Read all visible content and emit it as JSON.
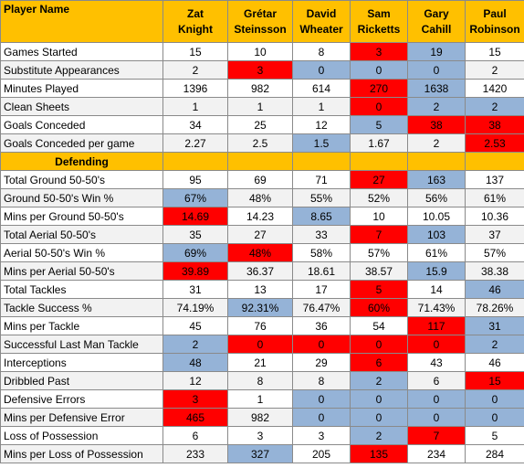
{
  "header": {
    "corner_label": "Player Name",
    "players": [
      {
        "line1": "Zat",
        "line2": "Knight"
      },
      {
        "line1": "Grétar",
        "line2": "Steinsson"
      },
      {
        "line1": "David",
        "line2": "Wheater"
      },
      {
        "line1": "Sam",
        "line2": "Ricketts"
      },
      {
        "line1": "Gary",
        "line2": "Cahill"
      },
      {
        "line1": "Paul",
        "line2": "Robinson"
      }
    ]
  },
  "colors": {
    "red": "#ff0000",
    "blue": "#95b3d7",
    "header": "#ffc000",
    "white": "#ffffff",
    "grey": "#f2f2f2"
  },
  "general_rows": [
    {
      "label": "Games Started",
      "values": [
        "15",
        "10",
        "8",
        "3",
        "19",
        "15"
      ],
      "colors": [
        "white",
        "white",
        "white",
        "red",
        "blue",
        "white"
      ]
    },
    {
      "label": "Substitute Appearances",
      "values": [
        "2",
        "3",
        "0",
        "0",
        "0",
        "2"
      ],
      "colors": [
        "grey",
        "red",
        "blue",
        "blue",
        "blue",
        "grey"
      ]
    },
    {
      "label": "Minutes Played",
      "values": [
        "1396",
        "982",
        "614",
        "270",
        "1638",
        "1420"
      ],
      "colors": [
        "white",
        "white",
        "white",
        "red",
        "blue",
        "white"
      ]
    },
    {
      "label": "Clean Sheets",
      "values": [
        "1",
        "1",
        "1",
        "0",
        "2",
        "2"
      ],
      "colors": [
        "grey",
        "grey",
        "grey",
        "red",
        "blue",
        "blue"
      ]
    },
    {
      "label": "Goals Conceded",
      "values": [
        "34",
        "25",
        "12",
        "5",
        "38",
        "38"
      ],
      "colors": [
        "white",
        "white",
        "white",
        "blue",
        "red",
        "red"
      ]
    },
    {
      "label": "Goals Conceded per game",
      "values": [
        "2.27",
        "2.5",
        "1.5",
        "1.67",
        "2",
        "2.53"
      ],
      "colors": [
        "grey",
        "grey",
        "blue",
        "grey",
        "grey",
        "red"
      ]
    }
  ],
  "section_defending": "Defending",
  "defending_rows": [
    {
      "label": "Total Ground 50-50's",
      "values": [
        "95",
        "69",
        "71",
        "27",
        "163",
        "137"
      ],
      "colors": [
        "white",
        "white",
        "white",
        "red",
        "blue",
        "white"
      ]
    },
    {
      "label": "Ground 50-50's Win %",
      "values": [
        "67%",
        "48%",
        "55%",
        "52%",
        "56%",
        "61%"
      ],
      "colors": [
        "blue",
        "grey",
        "grey",
        "grey",
        "grey",
        "grey"
      ]
    },
    {
      "label": "Mins per Ground 50-50's",
      "values": [
        "14.69",
        "14.23",
        "8.65",
        "10",
        "10.05",
        "10.36"
      ],
      "colors": [
        "red",
        "white",
        "blue",
        "white",
        "white",
        "white"
      ]
    },
    {
      "label": "Total Aerial 50-50's",
      "values": [
        "35",
        "27",
        "33",
        "7",
        "103",
        "37"
      ],
      "colors": [
        "grey",
        "grey",
        "grey",
        "red",
        "blue",
        "grey"
      ]
    },
    {
      "label": "Aerial 50-50's Win %",
      "values": [
        "69%",
        "48%",
        "58%",
        "57%",
        "61%",
        "57%"
      ],
      "colors": [
        "blue",
        "red",
        "white",
        "white",
        "white",
        "white"
      ]
    },
    {
      "label": "Mins per Aerial 50-50's",
      "values": [
        "39.89",
        "36.37",
        "18.61",
        "38.57",
        "15.9",
        "38.38"
      ],
      "colors": [
        "red",
        "grey",
        "grey",
        "grey",
        "blue",
        "grey"
      ]
    },
    {
      "label": "Total Tackles",
      "values": [
        "31",
        "13",
        "17",
        "5",
        "14",
        "46"
      ],
      "colors": [
        "white",
        "white",
        "white",
        "red",
        "white",
        "blue"
      ]
    },
    {
      "label": "Tackle Success %",
      "values": [
        "74.19%",
        "92.31%",
        "76.47%",
        "60%",
        "71.43%",
        "78.26%"
      ],
      "colors": [
        "grey",
        "blue",
        "grey",
        "red",
        "grey",
        "grey"
      ]
    },
    {
      "label": "Mins per Tackle",
      "values": [
        "45",
        "76",
        "36",
        "54",
        "117",
        "31"
      ],
      "colors": [
        "white",
        "white",
        "white",
        "white",
        "red",
        "blue"
      ]
    },
    {
      "label": "Successful Last Man Tackle",
      "values": [
        "2",
        "0",
        "0",
        "0",
        "0",
        "2"
      ],
      "colors": [
        "blue",
        "red",
        "red",
        "red",
        "red",
        "blue"
      ]
    },
    {
      "label": "Interceptions",
      "values": [
        "48",
        "21",
        "29",
        "6",
        "43",
        "46"
      ],
      "colors": [
        "blue",
        "white",
        "white",
        "red",
        "white",
        "white"
      ]
    },
    {
      "label": "Dribbled Past",
      "values": [
        "12",
        "8",
        "8",
        "2",
        "6",
        "15"
      ],
      "colors": [
        "grey",
        "grey",
        "grey",
        "blue",
        "grey",
        "red"
      ]
    },
    {
      "label": "Defensive Errors",
      "values": [
        "3",
        "1",
        "0",
        "0",
        "0",
        "0"
      ],
      "colors": [
        "red",
        "white",
        "blue",
        "blue",
        "blue",
        "blue"
      ]
    },
    {
      "label": "Mins per Defensive Error",
      "values": [
        "465",
        "982",
        "0",
        "0",
        "0",
        "0"
      ],
      "colors": [
        "red",
        "grey",
        "blue",
        "blue",
        "blue",
        "blue"
      ]
    },
    {
      "label": "Loss of Possession",
      "values": [
        "6",
        "3",
        "3",
        "2",
        "7",
        "5"
      ],
      "colors": [
        "white",
        "white",
        "white",
        "blue",
        "red",
        "white"
      ]
    },
    {
      "label": "Mins per Loss of Possession",
      "values": [
        "233",
        "327",
        "205",
        "135",
        "234",
        "284"
      ],
      "colors": [
        "grey",
        "blue",
        "white",
        "red",
        "white",
        "white"
      ]
    }
  ]
}
